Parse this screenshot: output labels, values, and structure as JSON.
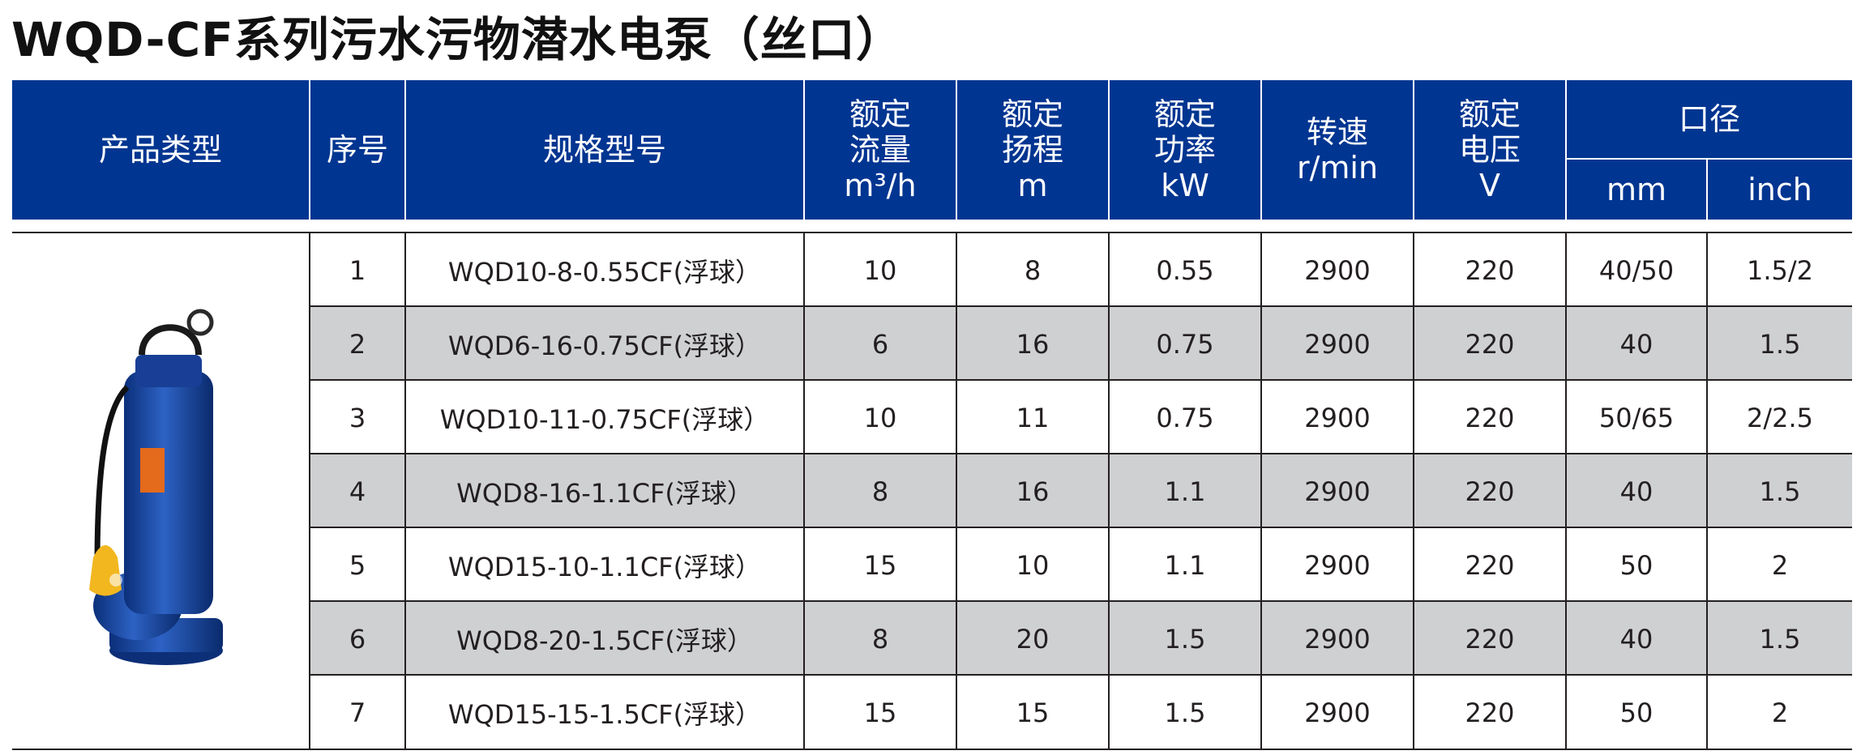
{
  "title": "WQD-CF系列污水污物潜水电泵（丝口）",
  "colors": {
    "header_bg": "#003591",
    "shaded_row": "#cfd0d2",
    "text": "#231f20"
  },
  "headers": {
    "product_type": "产品类型",
    "seq": "序号",
    "model": "规格型号",
    "flow": [
      "额定",
      "流量",
      "m³/h"
    ],
    "head": [
      "额定",
      "扬程",
      "m"
    ],
    "power": [
      "额定",
      "功率",
      "kW"
    ],
    "speed": [
      "转速",
      "r/min"
    ],
    "voltage": [
      "额定",
      "电压",
      "V"
    ],
    "outlet": "口径",
    "outlet_mm": "mm",
    "outlet_inch": "inch"
  },
  "rows": [
    {
      "seq": "1",
      "model": "WQD10-8-0.55CF(浮球）",
      "flow": "10",
      "head": "8",
      "power": "0.55",
      "speed": "2900",
      "voltage": "220",
      "mm": "40/50",
      "inch": "1.5/2"
    },
    {
      "seq": "2",
      "model": "WQD6-16-0.75CF(浮球）",
      "flow": "6",
      "head": "16",
      "power": "0.75",
      "speed": "2900",
      "voltage": "220",
      "mm": "40",
      "inch": "1.5"
    },
    {
      "seq": "3",
      "model": "WQD10-11-0.75CF(浮球）",
      "flow": "10",
      "head": "11",
      "power": "0.75",
      "speed": "2900",
      "voltage": "220",
      "mm": "50/65",
      "inch": "2/2.5"
    },
    {
      "seq": "4",
      "model": "WQD8-16-1.1CF(浮球）",
      "flow": "8",
      "head": "16",
      "power": "1.1",
      "speed": "2900",
      "voltage": "220",
      "mm": "40",
      "inch": "1.5"
    },
    {
      "seq": "5",
      "model": "WQD15-10-1.1CF(浮球）",
      "flow": "15",
      "head": "10",
      "power": "1.1",
      "speed": "2900",
      "voltage": "220",
      "mm": "50",
      "inch": "2"
    },
    {
      "seq": "6",
      "model": "WQD8-20-1.5CF(浮球）",
      "flow": "8",
      "head": "20",
      "power": "1.5",
      "speed": "2900",
      "voltage": "220",
      "mm": "40",
      "inch": "1.5"
    },
    {
      "seq": "7",
      "model": "WQD15-15-1.5CF(浮球）",
      "flow": "15",
      "head": "15",
      "power": "1.5",
      "speed": "2900",
      "voltage": "220",
      "mm": "50",
      "inch": "2"
    }
  ]
}
